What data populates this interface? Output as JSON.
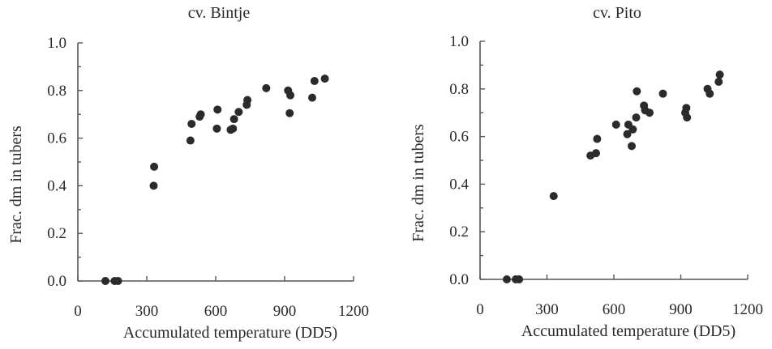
{
  "chart_data": [
    {
      "type": "scatter",
      "title": "cv. Bintje",
      "xlabel": "Accumulated temperature (DD5)",
      "ylabel": "Frac. dm in tubers",
      "xlim": [
        0,
        1200
      ],
      "ylim": [
        0,
        1.0
      ],
      "xticks": [
        "0",
        "300",
        "600",
        "900",
        "1200"
      ],
      "yticks": [
        "0.0",
        "0.2",
        "0.4",
        "0.6",
        "0.8",
        "1.0"
      ],
      "grid": false,
      "points": [
        {
          "x": 120,
          "y": 0.0
        },
        {
          "x": 160,
          "y": 0.0
        },
        {
          "x": 175,
          "y": 0.0
        },
        {
          "x": 330,
          "y": 0.4
        },
        {
          "x": 332,
          "y": 0.48
        },
        {
          "x": 490,
          "y": 0.59
        },
        {
          "x": 495,
          "y": 0.66
        },
        {
          "x": 530,
          "y": 0.69
        },
        {
          "x": 535,
          "y": 0.7
        },
        {
          "x": 605,
          "y": 0.64
        },
        {
          "x": 608,
          "y": 0.72
        },
        {
          "x": 665,
          "y": 0.635
        },
        {
          "x": 675,
          "y": 0.64
        },
        {
          "x": 680,
          "y": 0.68
        },
        {
          "x": 700,
          "y": 0.71
        },
        {
          "x": 735,
          "y": 0.74
        },
        {
          "x": 738,
          "y": 0.76
        },
        {
          "x": 820,
          "y": 0.81
        },
        {
          "x": 915,
          "y": 0.8
        },
        {
          "x": 922,
          "y": 0.705
        },
        {
          "x": 925,
          "y": 0.78
        },
        {
          "x": 1020,
          "y": 0.77
        },
        {
          "x": 1030,
          "y": 0.84
        },
        {
          "x": 1075,
          "y": 0.85
        }
      ]
    },
    {
      "type": "scatter",
      "title": "cv. Pito",
      "xlabel": "Accumulated temperature (DD5)",
      "ylabel": "Frac. dm in tubers",
      "xlim": [
        0,
        1200
      ],
      "ylim": [
        0,
        1.0
      ],
      "xticks": [
        "0",
        "300",
        "600",
        "900",
        "1200"
      ],
      "yticks": [
        "0.0",
        "0.2",
        "0.4",
        "0.6",
        "0.8",
        "1.0"
      ],
      "grid": false,
      "points": [
        {
          "x": 120,
          "y": 0.0
        },
        {
          "x": 160,
          "y": 0.0
        },
        {
          "x": 175,
          "y": 0.0
        },
        {
          "x": 330,
          "y": 0.35
        },
        {
          "x": 495,
          "y": 0.52
        },
        {
          "x": 520,
          "y": 0.53
        },
        {
          "x": 525,
          "y": 0.59
        },
        {
          "x": 610,
          "y": 0.65
        },
        {
          "x": 660,
          "y": 0.61
        },
        {
          "x": 665,
          "y": 0.65
        },
        {
          "x": 680,
          "y": 0.56
        },
        {
          "x": 685,
          "y": 0.63
        },
        {
          "x": 700,
          "y": 0.68
        },
        {
          "x": 703,
          "y": 0.79
        },
        {
          "x": 735,
          "y": 0.73
        },
        {
          "x": 740,
          "y": 0.71
        },
        {
          "x": 760,
          "y": 0.7
        },
        {
          "x": 820,
          "y": 0.78
        },
        {
          "x": 920,
          "y": 0.7
        },
        {
          "x": 925,
          "y": 0.72
        },
        {
          "x": 928,
          "y": 0.68
        },
        {
          "x": 1020,
          "y": 0.8
        },
        {
          "x": 1030,
          "y": 0.78
        },
        {
          "x": 1070,
          "y": 0.83
        },
        {
          "x": 1075,
          "y": 0.86
        }
      ]
    }
  ]
}
